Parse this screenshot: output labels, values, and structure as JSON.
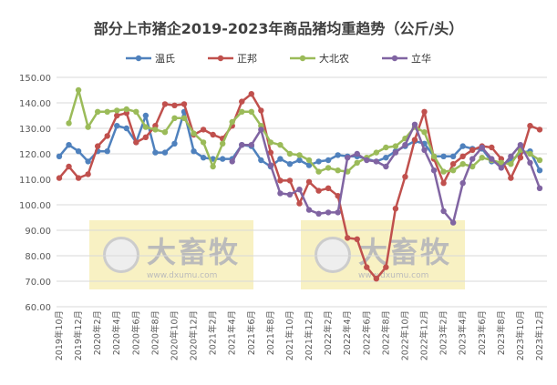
{
  "chart_data": {
    "type": "line",
    "title": "部分上市猪企2019-2023年商品猪均重趋势（公斤/头）",
    "xlabel": "",
    "ylabel": "",
    "ylim": [
      60,
      150
    ],
    "yticks": [
      "60.00",
      "70.00",
      "80.00",
      "90.00",
      "100.00",
      "110.00",
      "120.00",
      "130.00",
      "140.00",
      "150.00"
    ],
    "grid": true,
    "legend": "top",
    "x": [
      "2019年10月",
      "2019年11月",
      "2019年12月",
      "2020年1月",
      "2020年2月",
      "2020年3月",
      "2020年4月",
      "2020年5月",
      "2020年6月",
      "2020年7月",
      "2020年8月",
      "2020年9月",
      "2020年10月",
      "2020年11月",
      "2020年12月",
      "2021年1月",
      "2021年2月",
      "2021年3月",
      "2021年4月",
      "2021年5月",
      "2021年6月",
      "2021年7月",
      "2021年8月",
      "2021年9月",
      "2021年10月",
      "2021年11月",
      "2021年12月",
      "2022年1月",
      "2022年2月",
      "2022年3月",
      "2022年4月",
      "2022年5月",
      "2022年6月",
      "2022年7月",
      "2022年8月",
      "2022年9月",
      "2022年10月",
      "2022年11月",
      "2022年12月",
      "2023年1月",
      "2023年2月",
      "2023年3月",
      "2023年4月",
      "2023年5月",
      "2023年6月",
      "2023年7月",
      "2023年8月",
      "2023年9月",
      "2023年10月",
      "2023年11月",
      "2023年12月"
    ],
    "xtick_labels": [
      "2019年10月",
      "2019年12月",
      "2020年2月",
      "2020年4月",
      "2020年6月",
      "2020年8月",
      "2020年10月",
      "2020年12月",
      "2021年2月",
      "2021年4月",
      "2021年6月",
      "2021年8月",
      "2021年10月",
      "2021年12月",
      "2022年2月",
      "2022年4月",
      "2022年6月",
      "2022年8月",
      "2022年10月",
      "2022年12月",
      "2023年2月",
      "2023年4月",
      "2023年6月",
      "2023年8月",
      "2023年10月",
      "2023年12月"
    ],
    "series": [
      {
        "name": "温氏",
        "color": "#4F81BD",
        "values": [
          119,
          123.5,
          121,
          117,
          121,
          121,
          131,
          130,
          124.5,
          135,
          120.5,
          120.5,
          124,
          136.5,
          121,
          118.5,
          118,
          118,
          118,
          123.5,
          123,
          117.5,
          115,
          118,
          116,
          117.5,
          115.5,
          117,
          117.5,
          119.5,
          119,
          119,
          118,
          117,
          118.5,
          121,
          123,
          125,
          124,
          119,
          119,
          119,
          123,
          122,
          122,
          117,
          116,
          117,
          120.5,
          121,
          113.5
        ]
      },
      {
        "name": "正邦",
        "color": "#C0504D",
        "values": [
          110.5,
          115,
          110.5,
          112,
          123,
          127,
          135,
          136,
          124.5,
          126.5,
          131,
          139.5,
          139,
          139.5,
          127.5,
          129.5,
          127.5,
          126,
          131,
          140.5,
          143.5,
          137,
          120.5,
          109.5,
          109.5,
          100.5,
          109,
          105.5,
          106.5,
          103.5,
          87,
          86.5,
          75.5,
          71,
          75.5,
          98.5,
          111,
          125.5,
          136.5,
          118,
          108.5,
          116,
          119,
          121.5,
          123,
          122.5,
          118,
          110.5,
          118.5,
          131,
          129.5
        ]
      },
      {
        "name": "大北农",
        "color": "#9BBB59",
        "values": [
          null,
          132,
          145,
          130.5,
          136.5,
          136.5,
          137,
          137.5,
          136.5,
          130.5,
          129.5,
          128.5,
          134,
          134,
          128,
          124.5,
          115,
          124,
          132.5,
          136.5,
          136.5,
          131,
          124.5,
          123.5,
          120,
          119.5,
          117.5,
          113,
          114.5,
          113.5,
          113,
          116.5,
          118.5,
          120.5,
          122.5,
          123,
          126,
          130.5,
          128.5,
          119,
          113,
          113.5,
          116,
          115,
          118.5,
          117.5,
          116.5,
          116,
          121.5,
          120,
          117.5
        ]
      },
      {
        "name": "立华",
        "color": "#8064A2",
        "values": [
          null,
          null,
          null,
          null,
          null,
          null,
          null,
          null,
          null,
          null,
          null,
          null,
          null,
          null,
          null,
          null,
          null,
          null,
          117,
          123.5,
          123.5,
          129.5,
          115.5,
          104.5,
          104,
          106,
          98,
          96.5,
          97,
          97,
          118.5,
          120,
          117.5,
          117,
          115,
          120.5,
          123.5,
          131.5,
          121.5,
          113.5,
          97.5,
          93,
          108.5,
          118,
          122.5,
          118,
          114.5,
          119,
          123.5,
          116.5,
          106.5
        ]
      }
    ]
  },
  "watermark": {
    "logo_text": "大畜牧",
    "url": "www.dxumu.com"
  }
}
